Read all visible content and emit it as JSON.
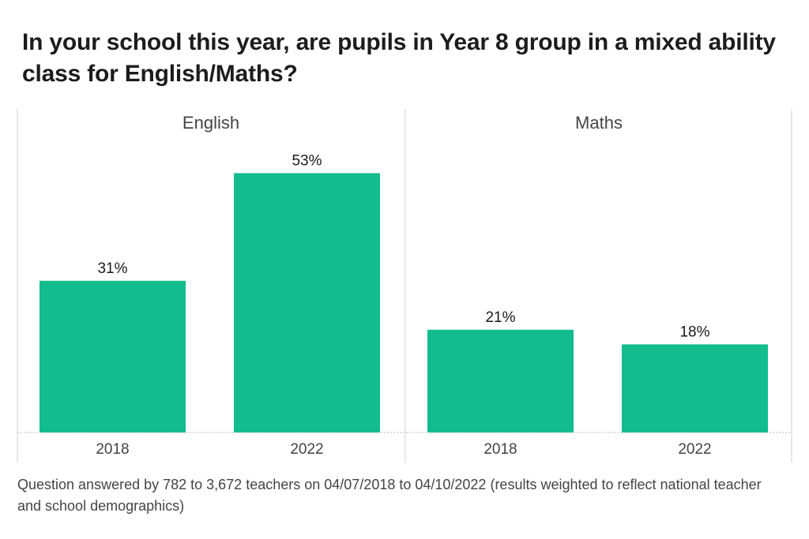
{
  "title": "In your school this year, are pupils in Year 8 group in a mixed ability class for English/Maths?",
  "note": "Question answered by 782 to 3,672 teachers on 04/07/2018 to 04/10/2022 (results weighted to reflect national teacher and school demographics)",
  "colors": {
    "bar": "#12BC8E",
    "panel_border": "#d0d0d0",
    "baseline": "#bbbbbb"
  },
  "chart_data": [
    {
      "type": "bar",
      "panel": "English",
      "categories": [
        "2018",
        "2022"
      ],
      "values": [
        31,
        53
      ],
      "labels": [
        "31%",
        "53%"
      ],
      "ylim": [
        0,
        60
      ]
    },
    {
      "type": "bar",
      "panel": "Maths",
      "categories": [
        "2018",
        "2022"
      ],
      "values": [
        21,
        18
      ],
      "labels": [
        "21%",
        "18%"
      ],
      "ylim": [
        0,
        60
      ]
    }
  ]
}
